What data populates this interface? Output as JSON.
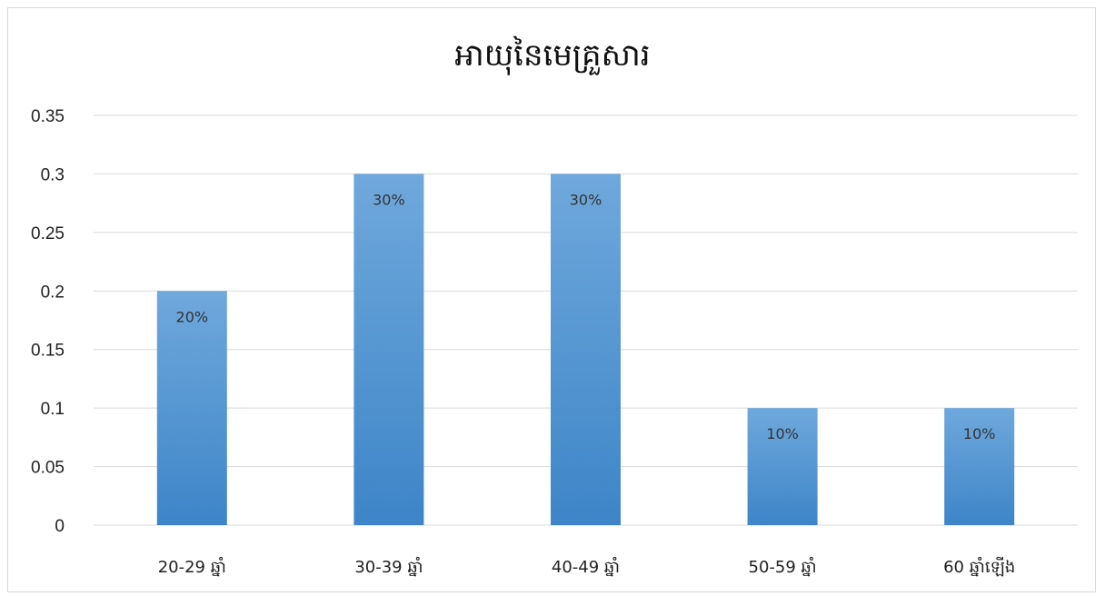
{
  "chart_data": {
    "type": "bar",
    "title": "អាយុនៃមេគ្រួសារ",
    "xlabel": "",
    "ylabel": "",
    "categories": [
      "20-29 ឆ្នាំ",
      "30-39 ឆ្នាំ",
      "40-49 ឆ្នាំ",
      "50-59 ឆ្នាំ",
      "60 ឆ្នាំឡើង"
    ],
    "values": [
      0.2,
      0.3,
      0.3,
      0.1,
      0.1
    ],
    "data_labels": [
      "20%",
      "30%",
      "30%",
      "10%",
      "10%"
    ],
    "ylim": [
      0,
      0.35
    ],
    "yticks": [
      "0",
      "0.05",
      "0.1",
      "0.15",
      "0.2",
      "0.25",
      "0.3",
      "0.35"
    ],
    "grid": true,
    "legend": "none",
    "colors": {
      "bar_top": "#6fa8dc",
      "bar_bottom": "#3d85c8",
      "grid": "#d9d9d9"
    }
  }
}
